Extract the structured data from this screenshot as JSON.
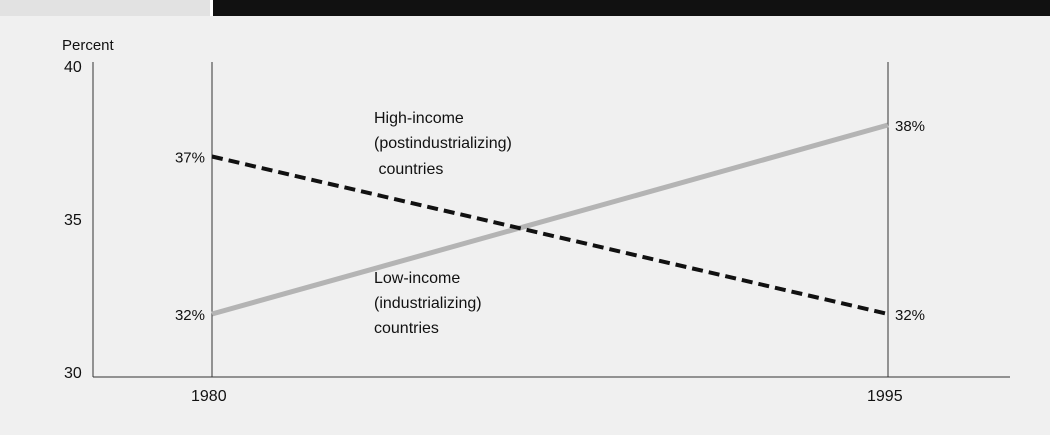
{
  "chart_data": {
    "type": "line",
    "ylabel": "Percent",
    "ylim": [
      30,
      40
    ],
    "yticks": [
      "30",
      "35",
      "40"
    ],
    "x": [
      "1980",
      "1995"
    ],
    "grid": false,
    "series": [
      {
        "values": [
          37,
          32
        ],
        "style": "dashed",
        "color": "#111111",
        "start_label": "37%",
        "end_label": "32%"
      },
      {
        "values": [
          32,
          38
        ],
        "style": "solid",
        "color": "#b4b4b4",
        "start_label": "32%",
        "end_label": "38%"
      }
    ],
    "annotations": {
      "high_income": [
        "High-income",
        "(postindustrializing)",
        " countries"
      ],
      "low_income": [
        "Low-income",
        "(industrializing)",
        "countries"
      ]
    }
  },
  "colors": {
    "panel_background": "#f0f0f0",
    "axis": "#333333"
  }
}
